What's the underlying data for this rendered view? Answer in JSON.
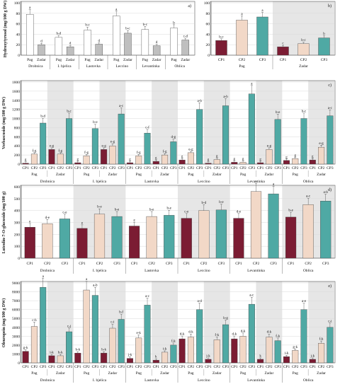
{
  "colors": {
    "cp1": "#7b1c33",
    "cp2": "#f2d8c7",
    "cp3": "#4fa9a4",
    "pag_white": "#ffffff",
    "zadar_grey": "#bfbfbf",
    "shade": "#e6e6e6",
    "grid": "#d9d9d9",
    "axis": "#555555"
  },
  "chart_data": [
    {
      "panel": "a)",
      "type": "bar",
      "ylabel": "Hydroxytyrosol (mg/100 g DW)",
      "ylim": [
        0,
        100
      ],
      "yticks": [
        0,
        20,
        40,
        60,
        80,
        100
      ],
      "varieties": [
        "Drobnica",
        "I. bjelica",
        "Lastovka",
        "Leccino",
        "Levantinka",
        "Oblica"
      ],
      "locations": [
        "Pag",
        "Zadar"
      ],
      "values": [
        78,
        20,
        34,
        16,
        48,
        21,
        75,
        42,
        49,
        18,
        52,
        29
      ],
      "letters": [
        "a",
        "d",
        "b-d",
        "d",
        "b-c",
        "d",
        "a",
        "b-c",
        "b-c",
        "d",
        "b",
        "c-d"
      ]
    },
    {
      "panel": "b)",
      "type": "bar",
      "ylim": [
        0,
        100
      ],
      "yticks": [
        0,
        20,
        40,
        60,
        80,
        100
      ],
      "categories": [
        "CP1",
        "CP2",
        "CP3",
        "CP1",
        "CP2",
        "CP3"
      ],
      "locations": [
        "Pag",
        "Zadar"
      ],
      "values": [
        28,
        67,
        73,
        16,
        22,
        33
      ],
      "letters": [
        "b-c",
        "a",
        "a",
        "c",
        "b-c",
        "b"
      ]
    },
    {
      "panel": "c)",
      "type": "bar",
      "ylabel": "Verbascoside (mg/100 g DW)",
      "ylim": [
        0,
        1800
      ],
      "yticks": [
        0,
        200,
        400,
        600,
        800,
        1000,
        1200,
        1400,
        1600,
        1800
      ],
      "varieties": [
        "Drobnica",
        "I. bjelica",
        "Lastovka",
        "Leccino",
        "Levantinka",
        "Oblica"
      ],
      "locations": [
        "Pag",
        "Zadar"
      ],
      "categories": [
        "CP1",
        "CP2",
        "CP3"
      ],
      "values": [
        [
          20,
          220,
          900
        ],
        [
          320,
          220,
          1000
        ],
        [
          30,
          180,
          780
        ],
        [
          320,
          400,
          1100
        ],
        [
          30,
          180,
          680
        ],
        [
          60,
          200,
          490
        ],
        [
          90,
          250,
          1200
        ],
        [
          20,
          100,
          1280
        ],
        [
          40,
          40,
          1540
        ],
        [
          30,
          320,
          980
        ],
        [
          80,
          120,
          1000
        ],
        [
          90,
          370,
          1060
        ]
      ],
      "letters": [
        [
          "g",
          "f-g",
          "b-d"
        ],
        [
          "e-g",
          "f-g",
          "b-c"
        ],
        [
          "g",
          "f-g",
          "b-e"
        ],
        [
          "e-g",
          "e-g",
          "a-c"
        ],
        [
          "g",
          "f-g",
          "c-f"
        ],
        [
          "g",
          "f-g",
          "d-g"
        ],
        [
          "g",
          "e-g",
          "a-b"
        ],
        [
          "g",
          "g",
          "a-b"
        ],
        [
          "g",
          "g",
          "a"
        ],
        [
          "g",
          "e-g",
          "b-e"
        ],
        [
          "g",
          "g",
          "b-c"
        ],
        [
          "g",
          "e-g",
          "a-c"
        ]
      ]
    },
    {
      "panel": "d)",
      "type": "bar",
      "ylabel": "Luteolin-7-O-glucoside (mg/100 g)",
      "ylim": [
        0,
        600
      ],
      "yticks": [
        0,
        100,
        200,
        300,
        400,
        500,
        600
      ],
      "varieties": [
        "Drobnica",
        "I. bjelica",
        "Lastovka",
        "Leccino",
        "Levantinka",
        "Oblica"
      ],
      "locations": [
        "Pag",
        "Zadar"
      ],
      "categories": [
        "CP1",
        "CP2",
        "CP3"
      ],
      "values": [
        [
          260,
          290,
          330
        ],
        [
          250,
          370,
          350
        ],
        [
          270,
          350,
          360
        ],
        [
          335,
          400,
          405
        ],
        [
          335,
          560,
          540
        ],
        [
          345,
          450,
          480
        ]
      ],
      "letters": [
        [
          "e",
          "d-e",
          "c-e"
        ],
        [
          "e",
          "b-e",
          "b-e"
        ],
        [
          "e",
          "b-e",
          "b-e"
        ],
        [
          "c-e",
          "b-d",
          "b-e"
        ],
        [
          "d-e",
          "a",
          "a"
        ],
        [
          "b-e",
          "a-c",
          "a-b"
        ]
      ]
    },
    {
      "panel": "e)",
      "type": "bar",
      "ylabel": "Oleuropein (mg/100 g DW)",
      "ylim": [
        0,
        9000
      ],
      "yticks": [
        0,
        1000,
        2000,
        3000,
        4000,
        5000,
        6000,
        7000,
        8000,
        9000
      ],
      "varieties": [
        "Drobnica",
        "I. bjelica",
        "Lastovka",
        "Leccino",
        "Levantinka",
        "Oblica"
      ],
      "locations": [
        "Pag",
        "Zadar"
      ],
      "categories": [
        "CP1",
        "CP2",
        "CP3"
      ],
      "values": [
        [
          1300,
          4100,
          8500
        ],
        [
          800,
          800,
          3500
        ],
        [
          1100,
          8200,
          7600
        ],
        [
          1100,
          3900,
          4900
        ],
        [
          500,
          2800,
          6500
        ],
        [
          300,
          1200,
          2000
        ],
        [
          2700,
          2900,
          6000
        ],
        [
          400,
          2600,
          4300
        ],
        [
          2700,
          3000,
          6600
        ],
        [
          400,
          2900,
          2500
        ],
        [
          700,
          1400,
          6000
        ],
        [
          400,
          2200,
          4000
        ]
      ],
      "letters": [
        [
          "g-k",
          "c-h",
          "a"
        ],
        [
          "i-k",
          "h-k",
          "c-j"
        ],
        [
          "h-k",
          "a",
          "a-b"
        ],
        [
          "h-k",
          "c-i",
          "b-f"
        ],
        [
          "j-k",
          "e-k",
          "a-c"
        ],
        [
          "k",
          "i-k",
          "f-k"
        ],
        [
          "d-k",
          "d-k",
          "a-d"
        ],
        [
          "j-k",
          "f-k",
          "b-g"
        ],
        [
          "d-k",
          "d-k",
          "a-c"
        ],
        [
          "k",
          "d-k",
          "f-k"
        ],
        [
          "i-k",
          "g-k",
          "a-e"
        ],
        [
          "j-k",
          "f-k",
          "c-i"
        ]
      ]
    }
  ]
}
